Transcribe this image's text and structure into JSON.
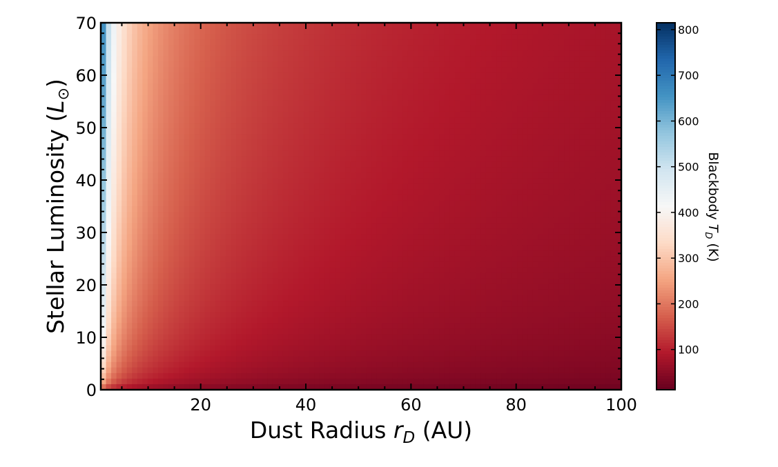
{
  "chart_data": {
    "type": "heatmap",
    "function": "T = 278.3 * L^0.25 / r^0.5",
    "x": {
      "range": [
        1,
        100
      ],
      "ticks": [
        20,
        40,
        60,
        80,
        100
      ]
    },
    "y": {
      "range": [
        0,
        70
      ],
      "ticks": [
        0,
        10,
        20,
        30,
        40,
        50,
        60,
        70
      ]
    },
    "xlabel": {
      "prefix": "Dust Radius ",
      "var": "r",
      "sub": "D",
      "suffix": "  (AU)"
    },
    "ylabel": {
      "prefix": "Stellar Luminosity (",
      "var": "L",
      "sub": "⊙",
      "suffix": ")"
    },
    "colorbar": {
      "range": [
        12,
        815
      ],
      "ticks": [
        100,
        200,
        300,
        400,
        500,
        600,
        700,
        800
      ],
      "label": {
        "prefix": "Blackbody ",
        "var": "T",
        "sub": "D",
        "suffix": "  (K)"
      },
      "colormap": "RdBu",
      "colors": [
        "#67001f",
        "#b2182b",
        "#d6604d",
        "#f4a582",
        "#fddbc7",
        "#f7f7f7",
        "#d1e5f0",
        "#92c5de",
        "#4393c3",
        "#2166ac",
        "#053061"
      ]
    }
  }
}
